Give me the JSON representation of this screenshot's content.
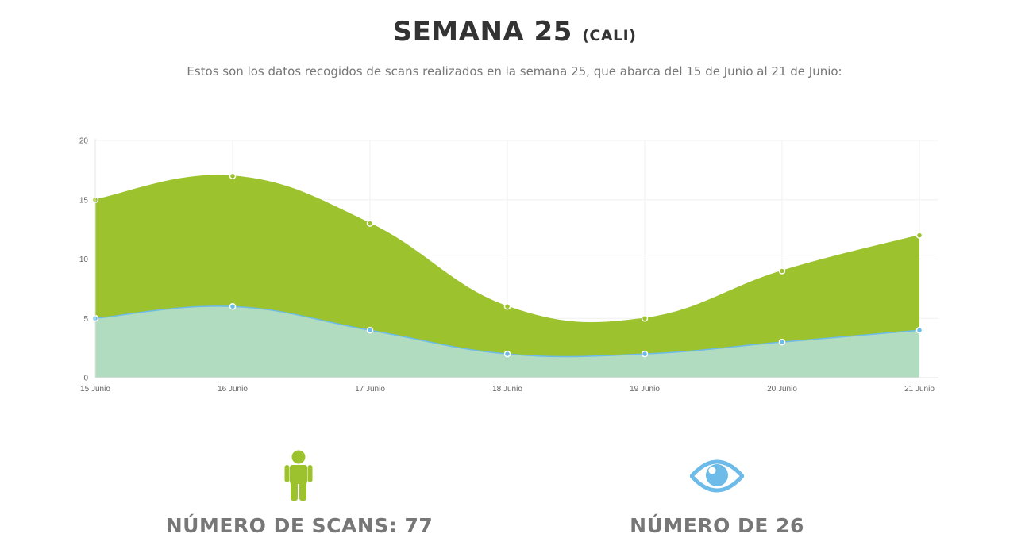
{
  "header": {
    "title": "SEMANA 25",
    "title_city": "(CALI)",
    "subtitle": "Estos son los datos recogidos de scans realizados en la semana 25, que abarca del 15 de Junio al 21 de Junio:"
  },
  "chart_data": {
    "type": "area",
    "categories": [
      "15 Junio",
      "16 Junio",
      "17 Junio",
      "18 Junio",
      "19 Junio",
      "20 Junio",
      "21 Junio"
    ],
    "series": [
      {
        "values": [
          15,
          17,
          13,
          6,
          5,
          9,
          12
        ],
        "color": "#9cc32e"
      },
      {
        "values": [
          5,
          6,
          4,
          2,
          2,
          3,
          4
        ],
        "color": "#b2dcc0",
        "line_color": "#6dbbe8"
      }
    ],
    "y_ticks": [
      0,
      5,
      10,
      15,
      20
    ],
    "ylim": [
      0,
      20
    ],
    "grid": true,
    "curve": "smooth"
  },
  "stats": {
    "scans": {
      "label": "NÚMERO DE SCANS: 77",
      "icon": "person-icon",
      "color": "#9cc32e"
    },
    "views": {
      "label": "NÚMERO DE 26",
      "icon": "eye-icon",
      "color": "#6dbbe8"
    }
  }
}
